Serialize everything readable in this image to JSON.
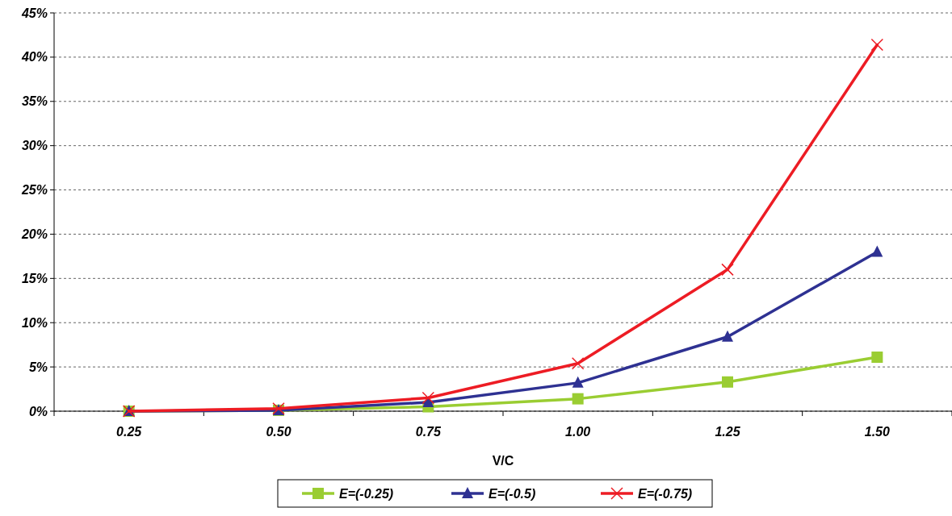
{
  "chart_data": {
    "type": "line",
    "xlabel": "V/C",
    "categories": [
      "0.25",
      "0.50",
      "0.75",
      "1.00",
      "1.25",
      "1.50"
    ],
    "series": [
      {
        "name": "E=(-0.25)",
        "color": "#9acd32",
        "marker": "square",
        "values": [
          0,
          0.1,
          0.5,
          1.4,
          3.3,
          6.1
        ]
      },
      {
        "name": "E=(-0.5)",
        "color": "#2e3192",
        "marker": "triangle",
        "values": [
          0,
          0.1,
          1.0,
          3.2,
          8.4,
          18.0
        ]
      },
      {
        "name": "E=(-0.75)",
        "color": "#ed1c24",
        "marker": "cross",
        "values": [
          0,
          0.3,
          1.5,
          5.4,
          16.0,
          41.4
        ]
      }
    ],
    "ylim": [
      0,
      45
    ],
    "yticks": [
      {
        "value": 0,
        "label": "0%"
      },
      {
        "value": 5,
        "label": "5%"
      },
      {
        "value": 10,
        "label": "10%"
      },
      {
        "value": 15,
        "label": "15%"
      },
      {
        "value": 20,
        "label": "20%"
      },
      {
        "value": 25,
        "label": "25%"
      },
      {
        "value": 30,
        "label": "30%"
      },
      {
        "value": 35,
        "label": "35%"
      },
      {
        "value": 40,
        "label": "40%"
      },
      {
        "value": 45,
        "label": "45%"
      }
    ],
    "grid": "y",
    "legend": "bottom",
    "line_style": "solid"
  }
}
